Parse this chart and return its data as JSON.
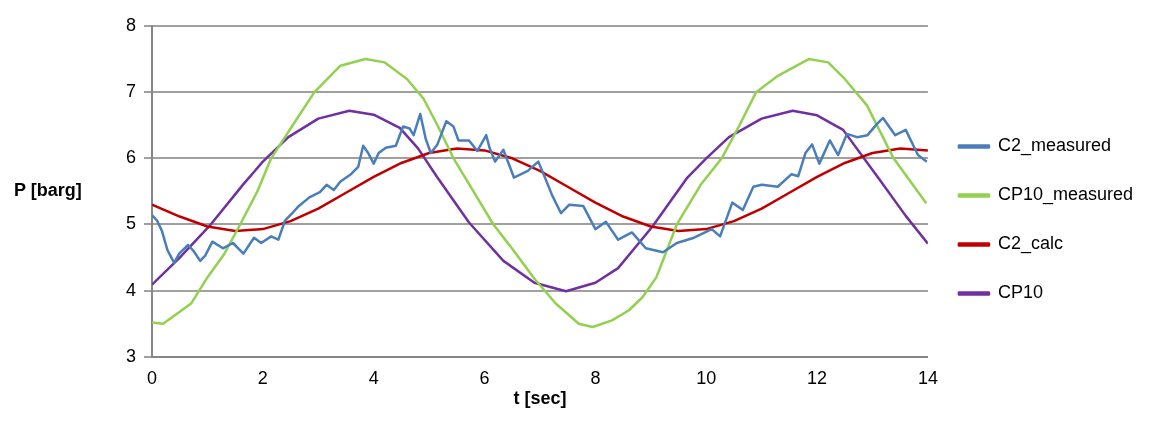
{
  "chart_data": {
    "type": "line",
    "xlabel": "t [sec]",
    "ylabel": "P [barg]",
    "xlim": [
      0,
      14
    ],
    "xticks": [
      0,
      2,
      4,
      6,
      8,
      10,
      12,
      14
    ],
    "ylim": [
      3,
      8
    ],
    "yticks": [
      3,
      4,
      5,
      6,
      7,
      8
    ],
    "grid": "y",
    "legend": "right",
    "marker": "none",
    "line_style": "solid",
    "series": [
      {
        "name": "C2_measured",
        "color": "#4a7ebb",
        "x": [
          0,
          0.09,
          0.18,
          0.28,
          0.4,
          0.49,
          0.65,
          0.74,
          0.87,
          0.96,
          1.09,
          1.28,
          1.46,
          1.65,
          1.84,
          1.97,
          2.15,
          2.28,
          2.4,
          2.53,
          2.65,
          2.84,
          3.03,
          3.15,
          3.28,
          3.4,
          3.59,
          3.72,
          3.81,
          3.9,
          4.0,
          4.09,
          4.22,
          4.4,
          4.53,
          4.65,
          4.72,
          4.84,
          4.94,
          5.03,
          5.15,
          5.31,
          5.44,
          5.53,
          5.72,
          5.87,
          6.03,
          6.09,
          6.19,
          6.34,
          6.53,
          6.78,
          6.97,
          7.09,
          7.22,
          7.38,
          7.53,
          7.78,
          8.0,
          8.19,
          8.41,
          8.66,
          8.91,
          9.22,
          9.47,
          9.78,
          10.1,
          10.25,
          10.47,
          10.66,
          10.85,
          11.0,
          11.29,
          11.54,
          11.66,
          11.79,
          11.91,
          12.04,
          12.23,
          12.38,
          12.54,
          12.72,
          12.91,
          13.07,
          13.19,
          13.41,
          13.6,
          13.82,
          13.98
        ],
        "values": [
          5.14,
          5.06,
          4.9,
          4.61,
          4.42,
          4.56,
          4.69,
          4.61,
          4.45,
          4.53,
          4.74,
          4.64,
          4.72,
          4.56,
          4.8,
          4.72,
          4.82,
          4.77,
          5.06,
          5.17,
          5.28,
          5.41,
          5.49,
          5.6,
          5.52,
          5.65,
          5.76,
          5.87,
          6.19,
          6.08,
          5.92,
          6.08,
          6.16,
          6.19,
          6.48,
          6.45,
          6.35,
          6.67,
          6.29,
          6.08,
          6.21,
          6.56,
          6.48,
          6.27,
          6.27,
          6.11,
          6.35,
          6.16,
          5.95,
          6.13,
          5.71,
          5.81,
          5.95,
          5.71,
          5.44,
          5.17,
          5.3,
          5.28,
          4.93,
          5.04,
          4.77,
          4.88,
          4.64,
          4.58,
          4.72,
          4.8,
          4.93,
          4.82,
          5.33,
          5.22,
          5.57,
          5.6,
          5.57,
          5.76,
          5.73,
          6.08,
          6.21,
          5.92,
          6.27,
          6.05,
          6.37,
          6.32,
          6.35,
          6.51,
          6.61,
          6.35,
          6.43,
          6.05,
          5.95
        ]
      },
      {
        "name": "CP10_measured",
        "color": "#92d050",
        "x": [
          0,
          0.2,
          0.5,
          0.71,
          1.0,
          1.3,
          1.59,
          1.9,
          2.15,
          2.5,
          2.93,
          3.4,
          3.85,
          4.2,
          4.6,
          4.9,
          5.15,
          5.44,
          5.8,
          6.16,
          6.53,
          6.9,
          7.28,
          7.7,
          7.95,
          8.3,
          8.6,
          8.85,
          9.1,
          9.47,
          9.9,
          10.28,
          10.6,
          10.9,
          11.3,
          11.85,
          12.2,
          12.5,
          12.9,
          13.38,
          13.97
        ],
        "values": [
          3.52,
          3.5,
          3.68,
          3.81,
          4.2,
          4.55,
          5.0,
          5.5,
          6.0,
          6.45,
          7.0,
          7.4,
          7.5,
          7.45,
          7.2,
          6.9,
          6.5,
          6.0,
          5.5,
          5.0,
          4.6,
          4.18,
          3.81,
          3.5,
          3.45,
          3.55,
          3.7,
          3.9,
          4.2,
          5.0,
          5.6,
          6.0,
          6.5,
          7.0,
          7.25,
          7.5,
          7.45,
          7.2,
          6.8,
          6.0,
          5.32
        ]
      },
      {
        "name": "C2_calc",
        "color": "#c00000",
        "x": [
          0,
          0.5,
          1,
          1.5,
          2,
          2.5,
          3,
          3.5,
          4,
          4.5,
          5,
          5.5,
          6,
          6.5,
          7,
          7.5,
          8,
          8.5,
          9,
          9.5,
          10,
          10.5,
          11,
          11.5,
          12,
          12.5,
          13,
          13.5,
          14
        ],
        "values": [
          5.3,
          5.12,
          4.97,
          4.9,
          4.93,
          5.05,
          5.24,
          5.48,
          5.72,
          5.93,
          6.08,
          6.15,
          6.12,
          6.0,
          5.81,
          5.57,
          5.33,
          5.12,
          4.97,
          4.9,
          4.93,
          5.05,
          5.24,
          5.48,
          5.72,
          5.93,
          6.08,
          6.15,
          6.12
        ]
      },
      {
        "name": "CP10",
        "color": "#7030a0",
        "x": [
          0,
          0.5,
          1.03,
          1.65,
          2.0,
          2.46,
          3.0,
          3.56,
          4.0,
          4.47,
          4.8,
          5.15,
          5.72,
          6.34,
          6.9,
          7.47,
          8.0,
          8.41,
          9.03,
          9.66,
          10.0,
          10.41,
          11.0,
          11.56,
          12.0,
          12.47,
          13.1,
          13.6,
          14.0
        ],
        "values": [
          4.09,
          4.5,
          4.97,
          5.61,
          5.95,
          6.32,
          6.6,
          6.72,
          6.66,
          6.46,
          6.15,
          5.71,
          5.03,
          4.45,
          4.12,
          3.99,
          4.12,
          4.34,
          4.97,
          5.71,
          6.0,
          6.32,
          6.6,
          6.72,
          6.65,
          6.43,
          5.71,
          5.13,
          4.71
        ]
      }
    ]
  }
}
